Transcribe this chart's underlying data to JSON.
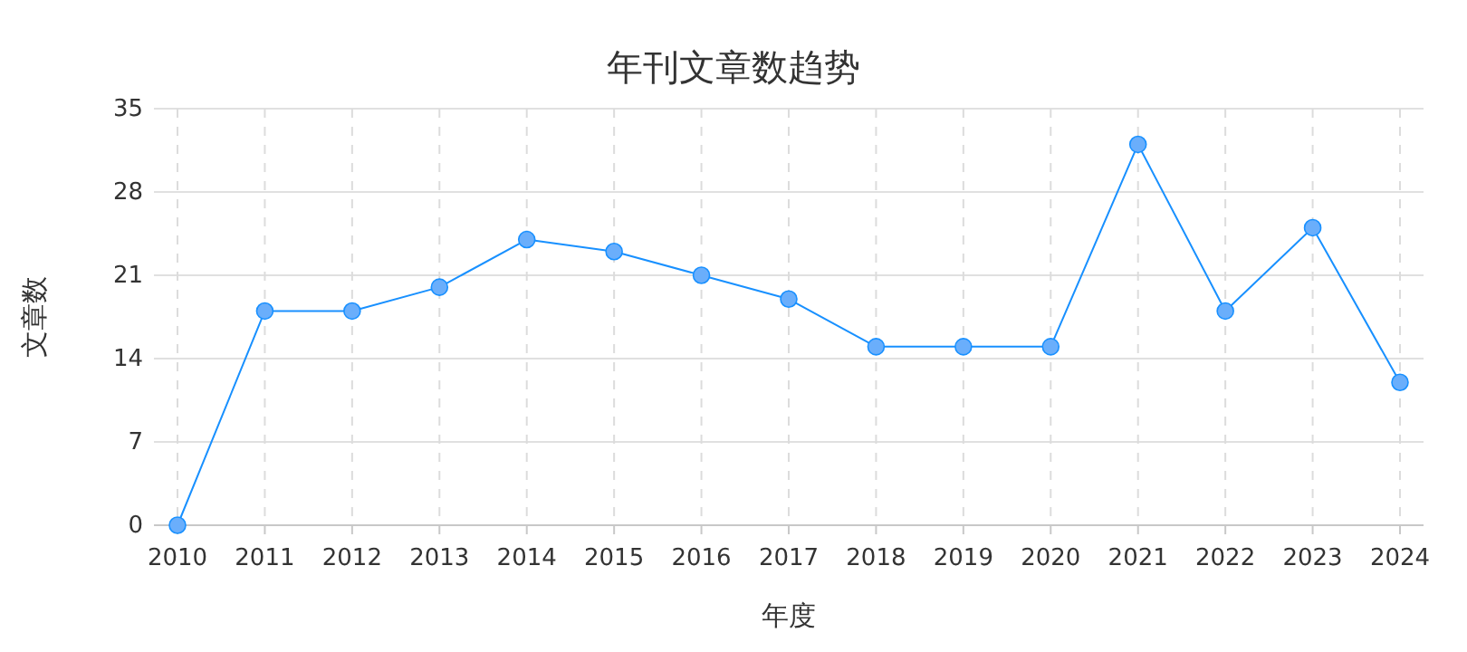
{
  "chart_data": {
    "type": "line",
    "title": "年刊文章数趋势",
    "xlabel": "年度",
    "ylabel": "文章数",
    "categories": [
      "2010",
      "2011",
      "2012",
      "2013",
      "2014",
      "2015",
      "2016",
      "2017",
      "2018",
      "2019",
      "2020",
      "2021",
      "2022",
      "2023",
      "2024"
    ],
    "series": [
      {
        "color": "#1890ff",
        "values": [
          0,
          18,
          18,
          20,
          24,
          23,
          21,
          19,
          15,
          15,
          15,
          32,
          18,
          25,
          12
        ]
      }
    ],
    "ylim": [
      0,
      35
    ],
    "yticks": [
      0,
      7,
      14,
      21,
      28,
      35
    ],
    "grid": true,
    "marker": "circle",
    "line_style": "solid"
  }
}
